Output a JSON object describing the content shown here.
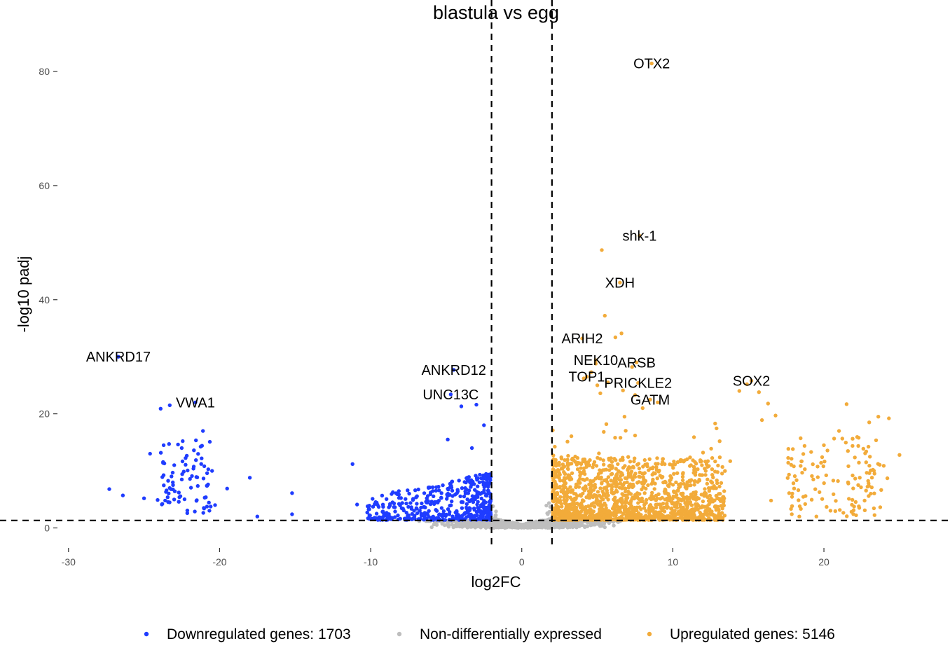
{
  "chart_data": {
    "type": "scatter",
    "title": "blastula vs egg",
    "xlabel": "log2FC",
    "ylabel": "-log10 padj",
    "xlim": [
      -30.5,
      27
    ],
    "ylim": [
      -3.5,
      87
    ],
    "x_ticks": [
      -30,
      -20,
      -10,
      0,
      10,
      20
    ],
    "y_ticks": [
      0,
      20,
      40,
      60,
      80
    ],
    "grid": false,
    "legend_position": "bottom",
    "thresholds": {
      "log2fc": [
        -2,
        2
      ],
      "neg_log10_padj": 1.3
    },
    "colors": {
      "down": "#1f3cff",
      "ns": "#bebebe",
      "up": "#f2ab3a"
    },
    "legend": [
      {
        "key": "down",
        "label": "Downregulated genes: 1703"
      },
      {
        "key": "ns",
        "label": "Non-differentially expressed"
      },
      {
        "key": "up",
        "label": "Upregulated genes: 5146"
      }
    ],
    "labeled_genes": [
      {
        "name": "OTX2",
        "x": 8.6,
        "y": 81.4,
        "group": "up"
      },
      {
        "name": "shk-1",
        "x": 7.8,
        "y": 51.2,
        "group": "up"
      },
      {
        "name": "XDH",
        "x": 6.5,
        "y": 43.0,
        "group": "up"
      },
      {
        "name": "ARIH2",
        "x": 4.0,
        "y": 33.2,
        "group": "up"
      },
      {
        "name": "NEK10",
        "x": 4.9,
        "y": 29.4,
        "group": "up"
      },
      {
        "name": "ARSB",
        "x": 7.6,
        "y": 29.0,
        "group": "up"
      },
      {
        "name": "TOP1",
        "x": 4.3,
        "y": 26.5,
        "group": "up"
      },
      {
        "name": "PRICKLE2",
        "x": 7.7,
        "y": 25.4,
        "group": "up"
      },
      {
        "name": "GATM",
        "x": 8.5,
        "y": 22.5,
        "group": "up"
      },
      {
        "name": "SOX2",
        "x": 15.2,
        "y": 25.8,
        "group": "up"
      },
      {
        "name": "ANKRD17",
        "x": -26.7,
        "y": 30.0,
        "group": "down"
      },
      {
        "name": "VWA1",
        "x": -21.6,
        "y": 22.0,
        "group": "down"
      },
      {
        "name": "ANKRD12",
        "x": -4.5,
        "y": 27.7,
        "group": "down"
      },
      {
        "name": "UNC13C",
        "x": -4.7,
        "y": 23.4,
        "group": "down"
      }
    ],
    "extra_points": {
      "up": [
        [
          5.3,
          48.7
        ],
        [
          5.5,
          37.2
        ],
        [
          6.2,
          33.4
        ],
        [
          6.6,
          34.1
        ],
        [
          7.3,
          28.2
        ],
        [
          4.9,
          28.8
        ],
        [
          4.6,
          27.3
        ],
        [
          4.1,
          26.2
        ],
        [
          5.0,
          25.0
        ],
        [
          5.7,
          25.5
        ],
        [
          6.7,
          24.1
        ],
        [
          5.2,
          23.6
        ],
        [
          7.5,
          23.3
        ],
        [
          9.0,
          22.0
        ],
        [
          14.4,
          24.0
        ],
        [
          14.9,
          25.2
        ],
        [
          15.7,
          23.8
        ],
        [
          16.3,
          21.8
        ],
        [
          16.8,
          19.7
        ],
        [
          15.9,
          18.9
        ],
        [
          21.5,
          21.7
        ],
        [
          23.6,
          19.5
        ],
        [
          24.3,
          19.2
        ],
        [
          25.0,
          12.8
        ],
        [
          6.8,
          19.5
        ],
        [
          7.5,
          16.2
        ],
        [
          5.6,
          18.2
        ],
        [
          8.0,
          21.0
        ],
        [
          20.0,
          14.5
        ],
        [
          21.0,
          17.0
        ],
        [
          22.3,
          15.8
        ],
        [
          23.0,
          18.5
        ],
        [
          22.8,
          13.4
        ],
        [
          19.3,
          8.5
        ],
        [
          21.9,
          9.2
        ],
        [
          24.2,
          8.7
        ],
        [
          23.1,
          6.0
        ],
        [
          17.7,
          6.1
        ],
        [
          16.5,
          4.8
        ],
        [
          18.4,
          3.8
        ],
        [
          11.4,
          15.9
        ],
        [
          12.8,
          18.3
        ],
        [
          13.1,
          15.2
        ],
        [
          12.0,
          13.2
        ],
        [
          13.8,
          11.7
        ]
      ],
      "down": [
        [
          -27.3,
          6.8
        ],
        [
          -26.4,
          5.7
        ],
        [
          -25.0,
          5.2
        ],
        [
          -24.1,
          4.9
        ],
        [
          -24.6,
          13.0
        ],
        [
          -23.3,
          21.5
        ],
        [
          -23.9,
          20.9
        ],
        [
          -23.6,
          4.8
        ],
        [
          -21.1,
          17.0
        ],
        [
          -20.5,
          10.0
        ],
        [
          -19.5,
          6.9
        ],
        [
          -18.0,
          8.8
        ],
        [
          -17.5,
          2.0
        ],
        [
          -15.2,
          6.1
        ],
        [
          -15.2,
          2.4
        ],
        [
          -11.2,
          11.2
        ],
        [
          -10.9,
          4.1
        ],
        [
          -20.3,
          4.0
        ],
        [
          -22.5,
          8.5
        ],
        [
          -23.0,
          11.0
        ],
        [
          -4.0,
          21.3
        ],
        [
          -3.0,
          21.6
        ],
        [
          -2.5,
          18.0
        ],
        [
          -4.9,
          15.5
        ],
        [
          -3.3,
          14.0
        ]
      ]
    }
  }
}
